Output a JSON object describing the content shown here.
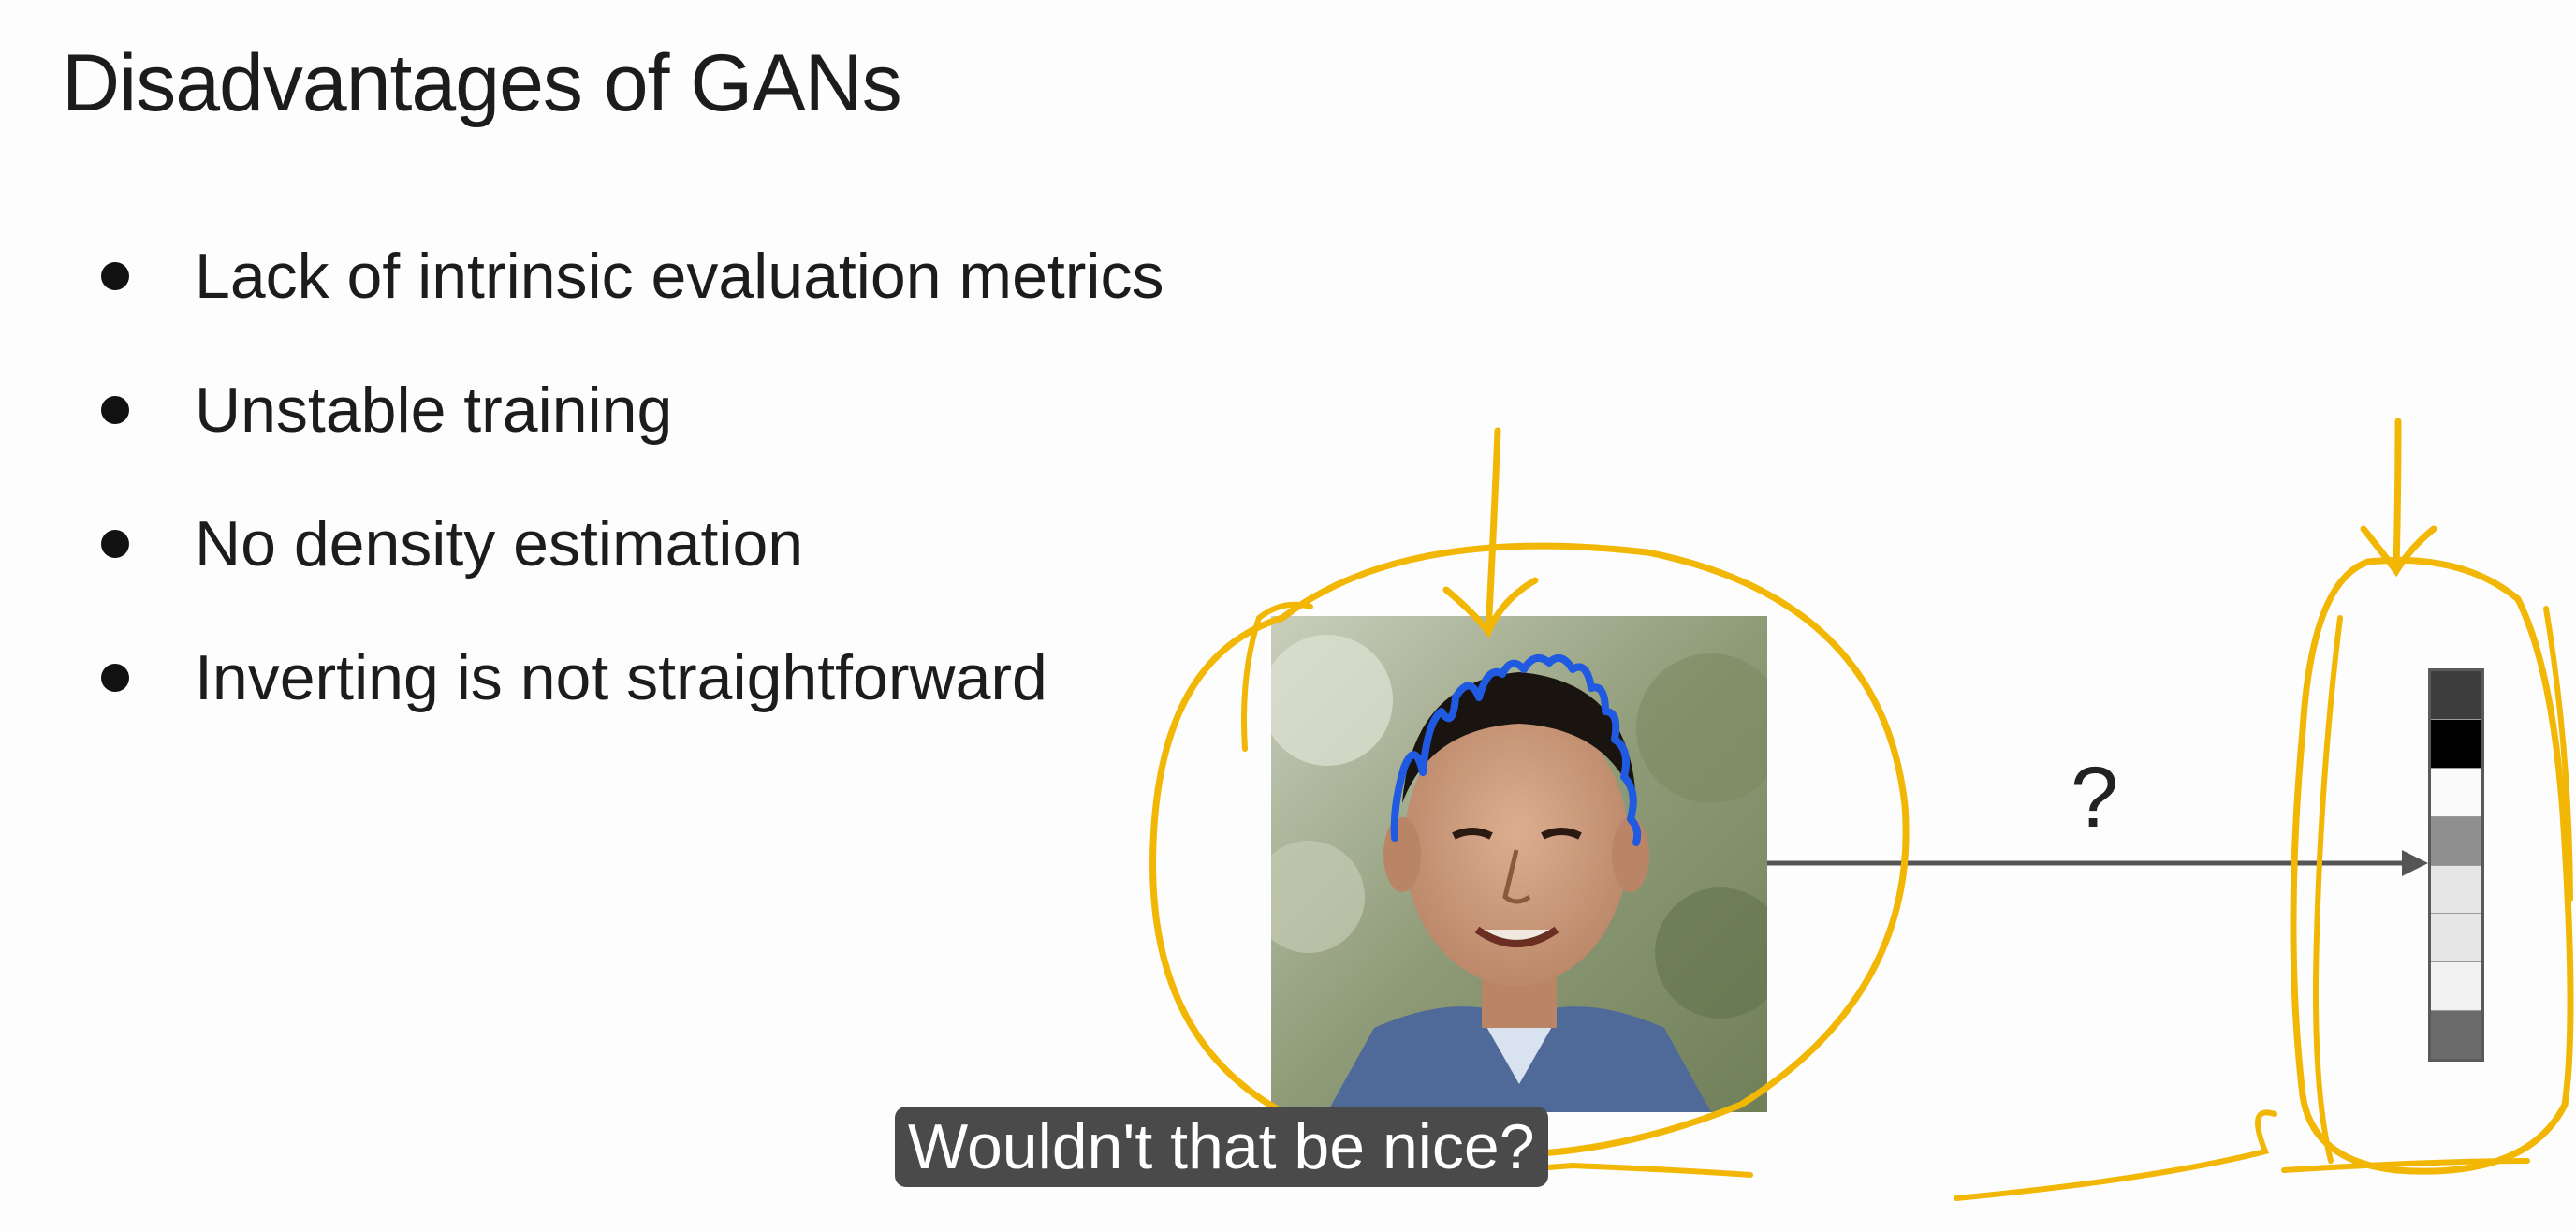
{
  "slide": {
    "title": "Disadvantages of GANs",
    "bullets": [
      "Lack of intrinsic evaluation metrics",
      "Unstable training",
      "No density estimation",
      "Inverting is not straightforward"
    ]
  },
  "diagram": {
    "arrow_label": "?",
    "photo_icon": "face-photo-icon",
    "latent_vector_shades": [
      "#3d3d3d",
      "#020202",
      "#fafafa",
      "#8e8e8e",
      "#e6e6e6",
      "#e6e6e6",
      "#f2f2f2",
      "#6b6b6b"
    ]
  },
  "annotations": {
    "ink_color_yellow": "#f2b705",
    "ink_color_blue": "#1f5ae0"
  },
  "caption": {
    "text": "Wouldn't that be nice?"
  }
}
